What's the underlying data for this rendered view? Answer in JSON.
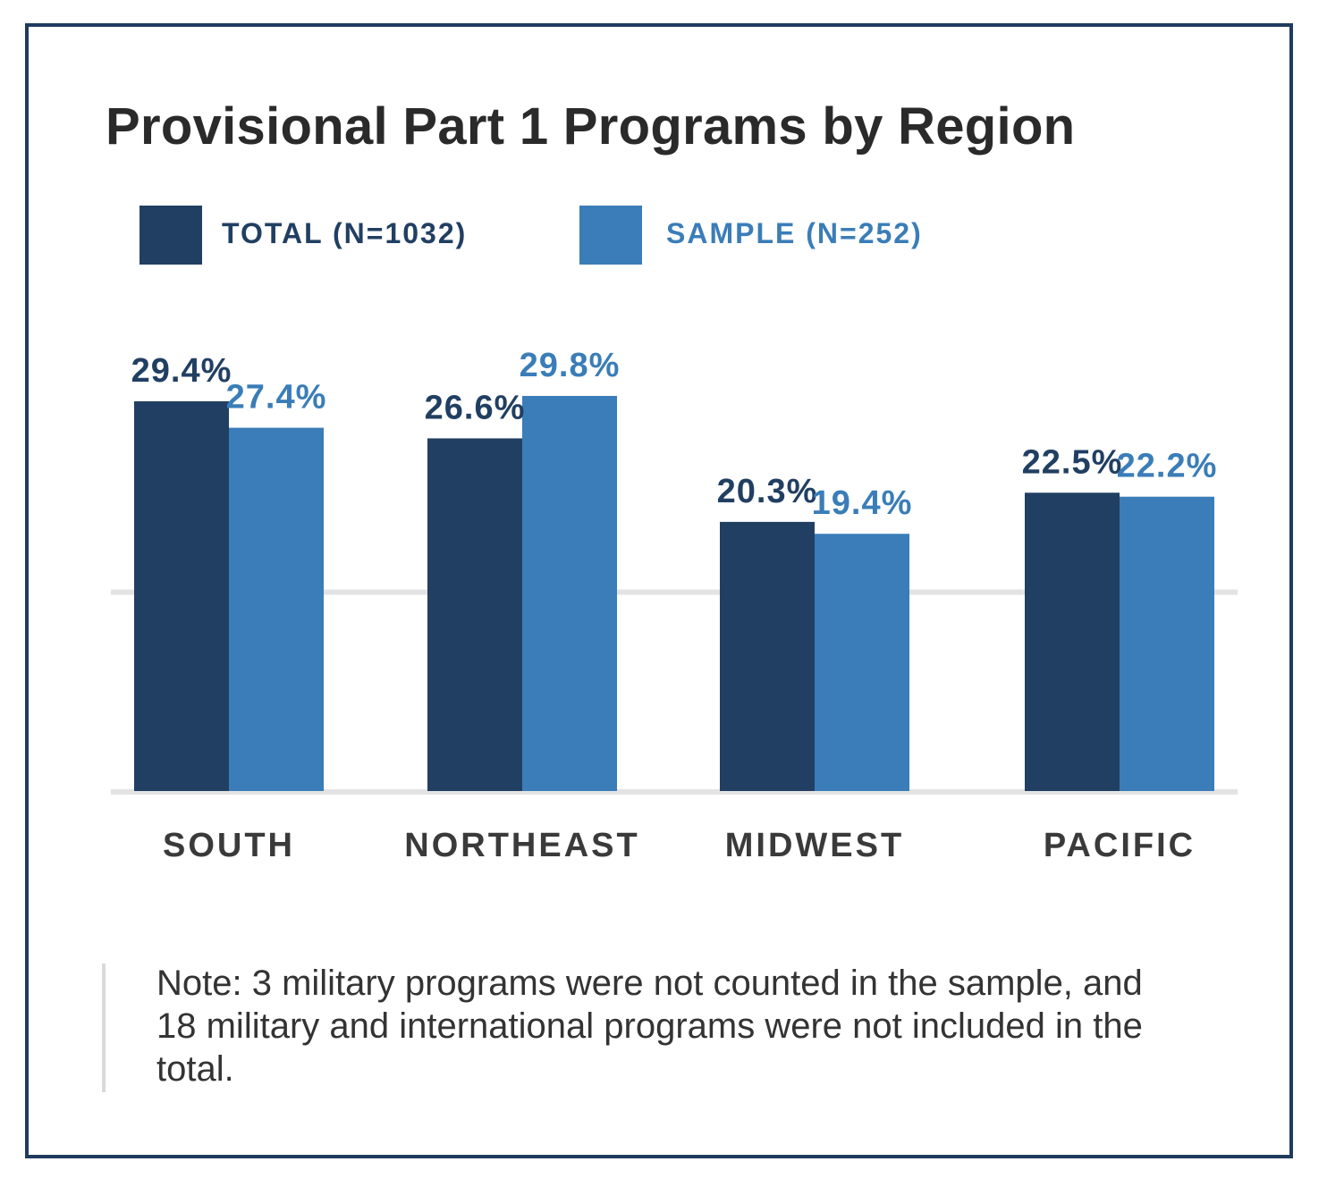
{
  "title": "Provisional Part 1 Programs by Region",
  "colors": {
    "total": "#213f62",
    "sample": "#3a7db8",
    "frame": "#1f3b5e",
    "grid": "#e3e3e3",
    "category": "#3a3a3a"
  },
  "legend": [
    {
      "label": "TOTAL (N=1032)",
      "color": "#213f62"
    },
    {
      "label": "SAMPLE (N=252)",
      "color": "#3a7db8"
    }
  ],
  "chart_data": {
    "type": "bar",
    "categories": [
      "SOUTH",
      "NORTHEAST",
      "MIDWEST",
      "PACIFIC"
    ],
    "series": [
      {
        "name": "TOTAL (N=1032)",
        "values": [
          29.4,
          26.6,
          20.3,
          22.5
        ],
        "labels": [
          "29.4%",
          "26.6%",
          "20.3%",
          "22.5%"
        ]
      },
      {
        "name": "SAMPLE (N=252)",
        "values": [
          27.4,
          29.8,
          19.4,
          22.2
        ],
        "labels": [
          "27.4%",
          "29.8%",
          "19.4%",
          "22.2%"
        ]
      }
    ],
    "ylim": [
      0,
      30
    ],
    "gridlines": [
      15
    ],
    "legend_position": "top-left",
    "grid": true
  },
  "note": "Note: 3 military programs were not counted in the sample, and 18 military and international programs were not included in the total."
}
